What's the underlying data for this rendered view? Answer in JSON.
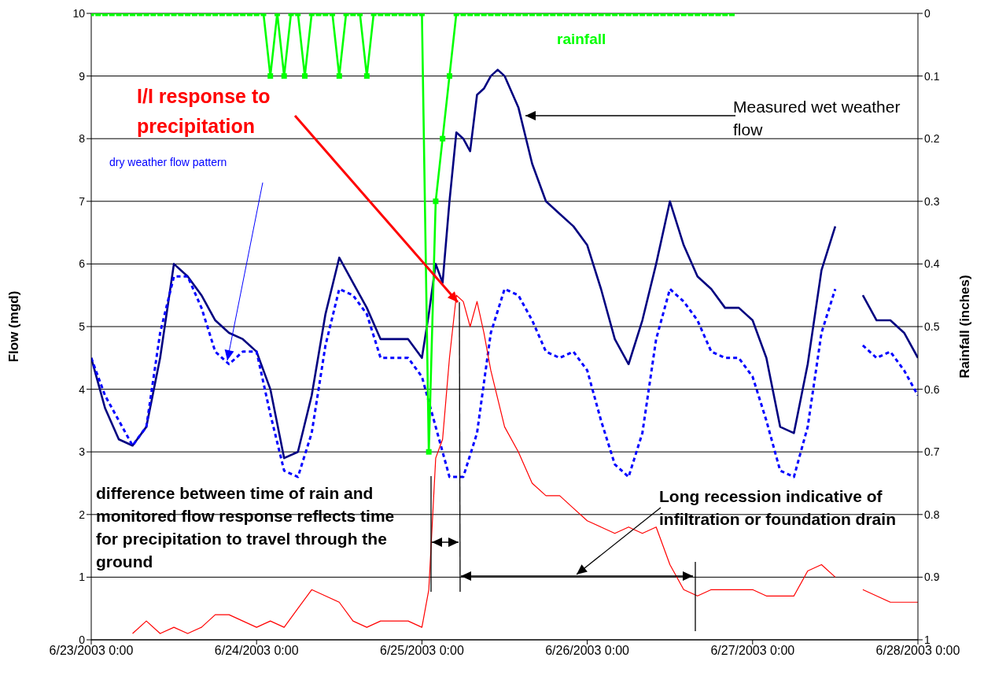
{
  "chart_data": {
    "type": "line",
    "xlabel": null,
    "ylabel": "Flow (mgd)",
    "y2label": "Rainfall (inches)",
    "xlim": [
      "2003-06-23T00:00",
      "2003-06-28T00:00"
    ],
    "xticks": [
      {
        "value": "2003-06-23T00:00",
        "label": "6/23/2003 0:00"
      },
      {
        "value": "2003-06-24T00:00",
        "label": "6/24/2003 0:00"
      },
      {
        "value": "2003-06-25T00:00",
        "label": "6/25/2003 0:00"
      },
      {
        "value": "2003-06-26T00:00",
        "label": "6/26/2003 0:00"
      },
      {
        "value": "2003-06-27T00:00",
        "label": "6/27/2003 0:00"
      },
      {
        "value": "2003-06-28T00:00",
        "label": "6/28/2003 0:00"
      }
    ],
    "ylim": [
      0,
      10
    ],
    "yticks": [
      0,
      1,
      2,
      3,
      4,
      5,
      6,
      7,
      8,
      9,
      10
    ],
    "y2lim": [
      1,
      0
    ],
    "y2ticks": [
      0,
      0.1,
      0.2,
      0.3,
      0.4,
      0.5,
      0.6,
      0.7,
      0.8,
      0.9,
      1
    ],
    "grid": "y",
    "series": [
      {
        "color": "#000080",
        "marker": "none",
        "line_style": "solid",
        "x": [
          "2003-06-23T00:00",
          "2003-06-23T02:00",
          "2003-06-23T04:00",
          "2003-06-23T06:00",
          "2003-06-23T08:00",
          "2003-06-23T10:00",
          "2003-06-23T12:00",
          "2003-06-23T14:00",
          "2003-06-23T16:00",
          "2003-06-23T18:00",
          "2003-06-23T20:00",
          "2003-06-23T22:00",
          "2003-06-24T00:00",
          "2003-06-24T02:00",
          "2003-06-24T04:00",
          "2003-06-24T06:00",
          "2003-06-24T08:00",
          "2003-06-24T10:00",
          "2003-06-24T12:00",
          "2003-06-24T14:00",
          "2003-06-24T16:00",
          "2003-06-24T18:00",
          "2003-06-24T20:00",
          "2003-06-24T22:00",
          "2003-06-25T00:00",
          "2003-06-25T01:00",
          "2003-06-25T02:00",
          "2003-06-25T03:00",
          "2003-06-25T04:00",
          "2003-06-25T05:00",
          "2003-06-25T06:00",
          "2003-06-25T07:00",
          "2003-06-25T08:00",
          "2003-06-25T09:00",
          "2003-06-25T10:00",
          "2003-06-25T11:00",
          "2003-06-25T12:00",
          "2003-06-25T14:00",
          "2003-06-25T16:00",
          "2003-06-25T18:00",
          "2003-06-25T20:00",
          "2003-06-25T22:00",
          "2003-06-26T00:00",
          "2003-06-26T02:00",
          "2003-06-26T04:00",
          "2003-06-26T06:00",
          "2003-06-26T08:00",
          "2003-06-26T10:00",
          "2003-06-26T12:00",
          "2003-06-26T14:00",
          "2003-06-26T16:00",
          "2003-06-26T18:00",
          "2003-06-26T20:00",
          "2003-06-26T22:00",
          "2003-06-27T00:00",
          "2003-06-27T02:00",
          "2003-06-27T04:00",
          "2003-06-27T06:00",
          "2003-06-27T08:00",
          "2003-06-27T10:00",
          "2003-06-27T12:00",
          "2003-06-27T14:00",
          "2003-06-27T16:00",
          "2003-06-27T18:00",
          "2003-06-27T20:00",
          "2003-06-27T22:00",
          "2003-06-28T00:00"
        ],
        "values": [
          4.5,
          3.7,
          3.2,
          3.1,
          3.4,
          4.5,
          6.0,
          5.8,
          5.5,
          5.1,
          4.9,
          4.8,
          4.6,
          4.0,
          2.9,
          3.0,
          3.9,
          5.2,
          6.1,
          5.7,
          5.3,
          4.8,
          4.8,
          4.8,
          4.5,
          5.2,
          6.0,
          5.7,
          7.0,
          8.1,
          8.0,
          7.8,
          8.7,
          8.8,
          9.0,
          9.1,
          9.0,
          8.5,
          7.6,
          7.0,
          6.8,
          6.6,
          6.3,
          5.6,
          4.8,
          4.4,
          5.1,
          6.0,
          7.0,
          6.3,
          5.8,
          5.6,
          5.3,
          5.3,
          5.1,
          4.5,
          3.4,
          3.3,
          4.4,
          5.9,
          6.6,
          null,
          5.5,
          5.1,
          5.1,
          4.9,
          4.5
        ]
      },
      {
        "name": "dry weather flow pattern",
        "color": "#0000ff",
        "marker": "none",
        "line_style": "dashed",
        "x": [
          "2003-06-23T00:00",
          "2003-06-23T02:00",
          "2003-06-23T04:00",
          "2003-06-23T06:00",
          "2003-06-23T08:00",
          "2003-06-23T10:00",
          "2003-06-23T12:00",
          "2003-06-23T14:00",
          "2003-06-23T16:00",
          "2003-06-23T18:00",
          "2003-06-23T20:00",
          "2003-06-23T22:00",
          "2003-06-24T00:00",
          "2003-06-24T02:00",
          "2003-06-24T04:00",
          "2003-06-24T06:00",
          "2003-06-24T08:00",
          "2003-06-24T10:00",
          "2003-06-24T12:00",
          "2003-06-24T14:00",
          "2003-06-24T16:00",
          "2003-06-24T18:00",
          "2003-06-24T20:00",
          "2003-06-24T22:00",
          "2003-06-25T00:00",
          "2003-06-25T02:00",
          "2003-06-25T04:00",
          "2003-06-25T06:00",
          "2003-06-25T08:00",
          "2003-06-25T10:00",
          "2003-06-25T12:00",
          "2003-06-25T14:00",
          "2003-06-25T16:00",
          "2003-06-25T18:00",
          "2003-06-25T20:00",
          "2003-06-25T22:00",
          "2003-06-26T00:00",
          "2003-06-26T02:00",
          "2003-06-26T04:00",
          "2003-06-26T06:00",
          "2003-06-26T08:00",
          "2003-06-26T10:00",
          "2003-06-26T12:00",
          "2003-06-26T14:00",
          "2003-06-26T16:00",
          "2003-06-26T18:00",
          "2003-06-26T20:00",
          "2003-06-26T22:00",
          "2003-06-27T00:00",
          "2003-06-27T02:00",
          "2003-06-27T04:00",
          "2003-06-27T06:00",
          "2003-06-27T08:00",
          "2003-06-27T10:00",
          "2003-06-27T12:00",
          "2003-06-27T14:00",
          "2003-06-27T16:00",
          "2003-06-27T18:00",
          "2003-06-27T20:00",
          "2003-06-27T22:00",
          "2003-06-28T00:00"
        ],
        "values": [
          4.5,
          3.9,
          3.5,
          3.1,
          3.4,
          4.9,
          5.8,
          5.8,
          5.3,
          4.6,
          4.4,
          4.6,
          4.6,
          3.6,
          2.7,
          2.6,
          3.3,
          4.7,
          5.6,
          5.5,
          5.2,
          4.5,
          4.5,
          4.5,
          4.2,
          3.4,
          2.6,
          2.6,
          3.3,
          4.9,
          5.6,
          5.5,
          5.1,
          4.6,
          4.5,
          4.6,
          4.3,
          3.5,
          2.8,
          2.6,
          3.3,
          4.8,
          5.6,
          5.4,
          5.1,
          4.6,
          4.5,
          4.5,
          4.2,
          3.5,
          2.7,
          2.6,
          3.4,
          4.9,
          5.6,
          null,
          4.7,
          4.5,
          4.6,
          4.3,
          3.9
        ]
      },
      {
        "name": "I/I response to precipitation",
        "color": "#ff0000",
        "marker": "none",
        "line_style": "solid",
        "x": [
          "2003-06-23T06:00",
          "2003-06-23T08:00",
          "2003-06-23T10:00",
          "2003-06-23T12:00",
          "2003-06-23T14:00",
          "2003-06-23T16:00",
          "2003-06-23T18:00",
          "2003-06-23T20:00",
          "2003-06-23T22:00",
          "2003-06-24T00:00",
          "2003-06-24T02:00",
          "2003-06-24T04:00",
          "2003-06-24T06:00",
          "2003-06-24T08:00",
          "2003-06-24T10:00",
          "2003-06-24T12:00",
          "2003-06-24T14:00",
          "2003-06-24T16:00",
          "2003-06-24T18:00",
          "2003-06-24T20:00",
          "2003-06-24T22:00",
          "2003-06-25T00:00",
          "2003-06-25T01:00",
          "2003-06-25T02:00",
          "2003-06-25T03:00",
          "2003-06-25T04:00",
          "2003-06-25T05:00",
          "2003-06-25T06:00",
          "2003-06-25T07:00",
          "2003-06-25T08:00",
          "2003-06-25T09:00",
          "2003-06-25T10:00",
          "2003-06-25T12:00",
          "2003-06-25T14:00",
          "2003-06-25T16:00",
          "2003-06-25T18:00",
          "2003-06-25T20:00",
          "2003-06-25T22:00",
          "2003-06-26T00:00",
          "2003-06-26T02:00",
          "2003-06-26T04:00",
          "2003-06-26T06:00",
          "2003-06-26T08:00",
          "2003-06-26T10:00",
          "2003-06-26T12:00",
          "2003-06-26T14:00",
          "2003-06-26T16:00",
          "2003-06-26T18:00",
          "2003-06-26T20:00",
          "2003-06-26T22:00",
          "2003-06-27T00:00",
          "2003-06-27T02:00",
          "2003-06-27T04:00",
          "2003-06-27T06:00",
          "2003-06-27T08:00",
          "2003-06-27T10:00",
          "2003-06-27T12:00",
          "2003-06-27T14:00",
          "2003-06-27T16:00",
          "2003-06-27T18:00",
          "2003-06-27T20:00",
          "2003-06-27T22:00",
          "2003-06-28T00:00"
        ],
        "values": [
          0.1,
          0.3,
          0.1,
          0.2,
          0.1,
          0.2,
          0.4,
          0.4,
          0.3,
          0.2,
          0.3,
          0.2,
          0.5,
          0.8,
          0.7,
          0.6,
          0.3,
          0.2,
          0.3,
          0.3,
          0.3,
          0.2,
          0.8,
          2.9,
          3.2,
          4.5,
          5.5,
          5.4,
          5.0,
          5.4,
          4.9,
          4.3,
          3.4,
          3.0,
          2.5,
          2.3,
          2.3,
          2.1,
          1.9,
          1.8,
          1.7,
          1.8,
          1.7,
          1.8,
          1.2,
          0.8,
          0.7,
          0.8,
          0.8,
          0.8,
          0.8,
          0.7,
          0.7,
          0.7,
          1.1,
          1.2,
          1.0,
          null,
          0.8,
          0.7,
          0.6,
          0.6,
          0.6
        ]
      },
      {
        "name": "rainfall",
        "color": "#00ff00",
        "marker": "square",
        "line_style": "solid",
        "axis": "y2",
        "x": [
          "2003-06-23T00:00",
          "2003-06-23T01:00",
          "2003-06-23T02:00",
          "2003-06-23T03:00",
          "2003-06-23T04:00",
          "2003-06-23T05:00",
          "2003-06-23T06:00",
          "2003-06-23T07:00",
          "2003-06-23T08:00",
          "2003-06-23T09:00",
          "2003-06-23T10:00",
          "2003-06-23T11:00",
          "2003-06-23T12:00",
          "2003-06-23T13:00",
          "2003-06-23T14:00",
          "2003-06-23T15:00",
          "2003-06-23T16:00",
          "2003-06-23T17:00",
          "2003-06-23T18:00",
          "2003-06-23T19:00",
          "2003-06-23T20:00",
          "2003-06-23T21:00",
          "2003-06-23T22:00",
          "2003-06-23T23:00",
          "2003-06-24T00:00",
          "2003-06-24T01:00",
          "2003-06-24T02:00",
          "2003-06-24T03:00",
          "2003-06-24T04:00",
          "2003-06-24T05:00",
          "2003-06-24T06:00",
          "2003-06-24T07:00",
          "2003-06-24T08:00",
          "2003-06-24T09:00",
          "2003-06-24T10:00",
          "2003-06-24T11:00",
          "2003-06-24T12:00",
          "2003-06-24T13:00",
          "2003-06-24T14:00",
          "2003-06-24T15:00",
          "2003-06-24T16:00",
          "2003-06-24T17:00",
          "2003-06-24T18:00",
          "2003-06-24T19:00",
          "2003-06-24T20:00",
          "2003-06-24T21:00",
          "2003-06-24T22:00",
          "2003-06-24T23:00",
          "2003-06-25T00:00",
          "2003-06-25T01:00",
          "2003-06-25T02:00",
          "2003-06-25T03:00",
          "2003-06-25T04:00",
          "2003-06-25T05:00",
          "2003-06-25T06:00",
          "2003-06-25T07:00",
          "2003-06-25T08:00",
          "2003-06-25T09:00",
          "2003-06-25T10:00",
          "2003-06-25T11:00",
          "2003-06-25T12:00",
          "2003-06-25T13:00",
          "2003-06-25T14:00",
          "2003-06-25T15:00",
          "2003-06-25T16:00",
          "2003-06-25T17:00",
          "2003-06-25T18:00",
          "2003-06-25T19:00",
          "2003-06-25T20:00",
          "2003-06-25T21:00",
          "2003-06-25T22:00",
          "2003-06-25T23:00",
          "2003-06-26T00:00",
          "2003-06-26T01:00",
          "2003-06-26T02:00",
          "2003-06-26T03:00",
          "2003-06-26T04:00",
          "2003-06-26T05:00",
          "2003-06-26T06:00",
          "2003-06-26T07:00",
          "2003-06-26T08:00",
          "2003-06-26T09:00",
          "2003-06-26T10:00",
          "2003-06-26T11:00",
          "2003-06-26T12:00",
          "2003-06-26T13:00",
          "2003-06-26T14:00",
          "2003-06-26T15:00",
          "2003-06-26T16:00",
          "2003-06-26T17:00",
          "2003-06-26T18:00",
          "2003-06-26T19:00",
          "2003-06-26T20:00",
          "2003-06-26T21:00"
        ],
        "values": [
          0,
          0,
          0,
          0,
          0,
          0,
          0,
          0,
          0,
          0,
          0,
          0,
          0,
          0,
          0,
          0,
          0,
          0,
          0,
          0,
          0,
          0,
          0,
          0,
          0,
          0,
          0.1,
          0,
          0.1,
          0,
          0,
          0.1,
          0,
          0,
          0,
          0,
          0.1,
          0,
          0,
          0,
          0.1,
          0,
          0,
          0,
          0,
          0,
          0,
          0,
          0,
          0.7,
          0.3,
          0.2,
          0.1,
          0,
          0,
          0,
          0,
          0,
          0,
          0,
          0,
          0,
          0,
          0,
          0,
          0,
          0,
          0,
          0,
          0,
          0,
          0,
          0,
          0,
          0,
          0,
          0,
          0,
          0,
          0,
          0,
          0,
          0,
          0,
          0,
          0,
          0,
          0,
          0,
          0,
          0,
          0,
          0,
          0
        ]
      }
    ],
    "annotations": [
      "Measured wet weather flow",
      "difference between time of rain and monitored flow response reflects time for precipitation to travel through the ground",
      "Long recession indicative of infiltration or foundation drain"
    ]
  }
}
